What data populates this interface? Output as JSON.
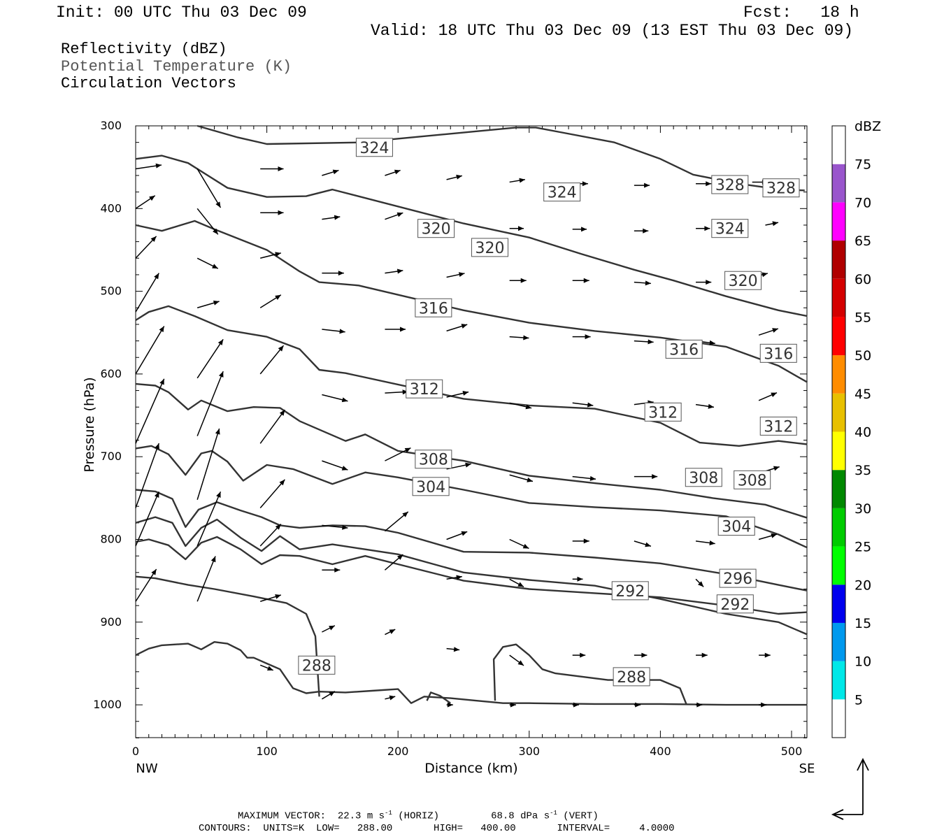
{
  "header": {
    "init": "Init: 00 UTC Thu 03 Dec 09",
    "fcst": "Fcst:   18 h",
    "valid": "Valid: 18 UTC Thu 03 Dec 09 (13 EST Thu 03 Dec 09)"
  },
  "legend": {
    "line1": "Reflectivity (dBZ)",
    "line2": "Potential Temperature (K)",
    "line3": "Circulation Vectors"
  },
  "footer": {
    "max_vector_prefix": "MAXIMUM VECTOR:  22.3 m s",
    "max_vector_horiz": " (HORIZ)",
    "max_vector_vert_prefix": "68.8 dPa s",
    "max_vector_vert": " (VERT)",
    "exponent": "-1",
    "contours": "CONTOURS:  UNITS=K  LOW=   288.00       HIGH=   400.00       INTERVAL=     4.0000"
  },
  "chart_data": {
    "type": "line",
    "title": "",
    "xlabel": "Distance (km)",
    "ylabel": "Pressure (hPa)",
    "xlim": [
      0,
      512
    ],
    "ylim": [
      1040,
      300
    ],
    "x_ticks": [
      0,
      100,
      200,
      300,
      400,
      500
    ],
    "y_ticks": [
      300,
      400,
      500,
      600,
      700,
      800,
      900,
      1000
    ],
    "x_end_labels": {
      "left": "NW",
      "right": "SE"
    },
    "colorbar": {
      "title": "dBZ",
      "labels": [
        "5",
        "10",
        "15",
        "20",
        "25",
        "30",
        "35",
        "40",
        "45",
        "50",
        "55",
        "60",
        "65",
        "70",
        "75"
      ],
      "colors": [
        "#ffffff",
        "#00e8e8",
        "#0099ee",
        "#0000ee",
        "#00ff00",
        "#00cc00",
        "#008800",
        "#ffff00",
        "#e8c000",
        "#ff8c00",
        "#ff0000",
        "#d40000",
        "#b00000",
        "#ff00ff",
        "#9955cc",
        "#ffffff"
      ]
    },
    "contour_labels": [
      {
        "text": "324",
        "x": 182,
        "p": 326
      },
      {
        "text": "324",
        "x": 325,
        "p": 380
      },
      {
        "text": "328",
        "x": 453,
        "p": 371
      },
      {
        "text": "328",
        "x": 492,
        "p": 375
      },
      {
        "text": "320",
        "x": 229,
        "p": 424
      },
      {
        "text": "320",
        "x": 270,
        "p": 447
      },
      {
        "text": "324",
        "x": 453,
        "p": 424
      },
      {
        "text": "320",
        "x": 463,
        "p": 487
      },
      {
        "text": "316",
        "x": 227,
        "p": 520
      },
      {
        "text": "316",
        "x": 418,
        "p": 570
      },
      {
        "text": "316",
        "x": 490,
        "p": 575
      },
      {
        "text": "312",
        "x": 220,
        "p": 618
      },
      {
        "text": "312",
        "x": 402,
        "p": 646
      },
      {
        "text": "312",
        "x": 490,
        "p": 663
      },
      {
        "text": "308",
        "x": 227,
        "p": 703
      },
      {
        "text": "308",
        "x": 433,
        "p": 725
      },
      {
        "text": "308",
        "x": 470,
        "p": 728
      },
      {
        "text": "304",
        "x": 225,
        "p": 736
      },
      {
        "text": "304",
        "x": 458,
        "p": 784
      },
      {
        "text": "296",
        "x": 459,
        "p": 847
      },
      {
        "text": "292",
        "x": 377,
        "p": 862
      },
      {
        "text": "292",
        "x": 457,
        "p": 878
      },
      {
        "text": "288",
        "x": 138,
        "p": 952
      },
      {
        "text": "288",
        "x": 378,
        "p": 966
      }
    ],
    "series": [
      {
        "x": [
          47,
          78,
          100,
          170,
          290,
          305,
          325,
          365,
          400,
          425,
          460,
          492,
          510
        ],
        "p": [
          300,
          314,
          322,
          320,
          302,
          302,
          308,
          320,
          340,
          359,
          370,
          377,
          378
        ]
      },
      {
        "x": [
          0,
          20,
          40,
          70,
          100,
          130,
          150,
          250,
          300,
          340,
          380,
          410,
          450,
          490,
          512
        ],
        "p": [
          340,
          336,
          345,
          375,
          386,
          385,
          377,
          418,
          435,
          455,
          474,
          487,
          506,
          523,
          530
        ]
      },
      {
        "x": [
          0,
          20,
          45,
          60,
          100,
          125,
          140,
          170,
          250,
          300,
          350,
          400,
          450,
          490,
          512
        ],
        "p": [
          420,
          427,
          415,
          425,
          450,
          476,
          489,
          493,
          523,
          538,
          548,
          556,
          567,
          590,
          610
        ]
      },
      {
        "x": [
          0,
          10,
          25,
          45,
          70,
          100,
          125,
          140,
          160,
          250,
          300,
          350,
          400,
          430,
          460,
          490,
          512
        ],
        "p": [
          535,
          525,
          518,
          530,
          547,
          555,
          570,
          595,
          599,
          630,
          638,
          642,
          659,
          683,
          687,
          681,
          685
        ]
      },
      {
        "x": [
          0,
          15,
          25,
          40,
          50,
          70,
          90,
          110,
          125,
          160,
          175,
          200,
          250,
          300,
          350,
          400,
          440,
          480,
          512
        ],
        "p": [
          612,
          614,
          622,
          643,
          632,
          645,
          640,
          641,
          657,
          681,
          673,
          693,
          705,
          723,
          732,
          740,
          750,
          758,
          774
        ]
      },
      {
        "x": [
          0,
          12,
          25,
          38,
          50,
          58,
          70,
          82,
          100,
          120,
          150,
          175,
          200,
          250,
          300,
          350,
          400,
          450,
          490,
          512
        ],
        "p": [
          690,
          687,
          697,
          722,
          696,
          693,
          706,
          729,
          710,
          715,
          733,
          719,
          725,
          740,
          756,
          761,
          765,
          772,
          794,
          810
        ]
      },
      {
        "x": [
          0,
          15,
          28,
          38,
          48,
          62,
          80,
          96,
          110,
          125,
          150,
          175,
          200,
          250,
          300,
          350,
          400,
          450,
          490,
          512
        ],
        "p": [
          740,
          742,
          751,
          785,
          764,
          755,
          765,
          773,
          783,
          786,
          783,
          784,
          792,
          815,
          816,
          822,
          829,
          842,
          855,
          862
        ]
      },
      {
        "x": [
          0,
          15,
          28,
          38,
          50,
          62,
          80,
          96,
          110,
          125,
          150,
          175,
          200,
          250,
          300,
          350,
          400,
          450,
          490,
          512
        ],
        "p": [
          780,
          773,
          780,
          808,
          786,
          776,
          798,
          814,
          796,
          812,
          806,
          812,
          818,
          840,
          849,
          856,
          872,
          890,
          900,
          915
        ]
      },
      {
        "x": [
          0,
          10,
          25,
          38,
          50,
          62,
          80,
          96,
          110,
          125,
          150,
          175,
          200,
          250,
          300,
          350,
          400,
          450,
          490,
          512
        ],
        "p": [
          803,
          800,
          807,
          824,
          804,
          797,
          812,
          830,
          819,
          820,
          830,
          820,
          830,
          850,
          860,
          865,
          870,
          880,
          890,
          888
        ]
      },
      {
        "x": [
          0,
          15,
          40,
          60,
          90,
          115,
          130,
          137,
          140
        ],
        "p": [
          845,
          847,
          855,
          860,
          869,
          877,
          890,
          917,
          990
        ]
      },
      {
        "x": [
          0,
          10,
          20,
          40,
          50,
          60,
          70,
          80,
          85,
          90,
          100,
          110,
          120,
          130,
          140,
          160,
          180,
          200,
          210,
          220,
          240,
          260,
          280,
          300,
          350,
          400,
          450,
          490,
          512
        ],
        "p": [
          940,
          932,
          928,
          926,
          933,
          924,
          926,
          934,
          943,
          943,
          950,
          957,
          980,
          986,
          984,
          985,
          983,
          981,
          998,
          990,
          992,
          995,
          998,
          998,
          999,
          999,
          1000,
          1000,
          1000
        ]
      },
      {
        "x": [
          274,
          273,
          280,
          290,
          300,
          310,
          320,
          360,
          400,
          415,
          420
        ],
        "p": [
          995,
          945,
          930,
          927,
          940,
          957,
          962,
          970,
          970,
          980,
          1000
        ]
      },
      {
        "x": [
          222,
          225,
          232,
          240
        ],
        "p": [
          995,
          985,
          989,
          998
        ]
      }
    ],
    "vectors": [
      {
        "x": 0,
        "p": 352,
        "u": 20,
        "v": -3
      },
      {
        "x": 47,
        "p": 352,
        "u": 18,
        "v": 30
      },
      {
        "x": 95,
        "p": 352,
        "u": 18,
        "v": 0
      },
      {
        "x": 142,
        "p": 360,
        "u": 13,
        "v": -4
      },
      {
        "x": 190,
        "p": 360,
        "u": 12,
        "v": -4
      },
      {
        "x": 237,
        "p": 365,
        "u": 12,
        "v": -3
      },
      {
        "x": 285,
        "p": 368,
        "u": 12,
        "v": -2
      },
      {
        "x": 333,
        "p": 370,
        "u": 12,
        "v": 0
      },
      {
        "x": 380,
        "p": 372,
        "u": 12,
        "v": 0
      },
      {
        "x": 427,
        "p": 370,
        "u": 12,
        "v": 0
      },
      {
        "x": 470,
        "p": 368,
        "u": 12,
        "v": 0
      },
      {
        "x": 0,
        "p": 400,
        "u": 15,
        "v": -10
      },
      {
        "x": 47,
        "p": 400,
        "u": 16,
        "v": 20
      },
      {
        "x": 95,
        "p": 405,
        "u": 18,
        "v": 0
      },
      {
        "x": 142,
        "p": 413,
        "u": 14,
        "v": -2
      },
      {
        "x": 190,
        "p": 413,
        "u": 14,
        "v": -5
      },
      {
        "x": 285,
        "p": 424,
        "u": 11,
        "v": 0
      },
      {
        "x": 333,
        "p": 425,
        "u": 11,
        "v": 0
      },
      {
        "x": 380,
        "p": 427,
        "u": 11,
        "v": 0
      },
      {
        "x": 427,
        "p": 424,
        "u": 11,
        "v": 0
      },
      {
        "x": 480,
        "p": 420,
        "u": 10,
        "v": -2
      },
      {
        "x": 0,
        "p": 460,
        "u": 16,
        "v": -17
      },
      {
        "x": 47,
        "p": 460,
        "u": 16,
        "v": 8
      },
      {
        "x": 95,
        "p": 460,
        "u": 16,
        "v": -4
      },
      {
        "x": 142,
        "p": 478,
        "u": 17,
        "v": 0
      },
      {
        "x": 190,
        "p": 478,
        "u": 14,
        "v": -2
      },
      {
        "x": 237,
        "p": 483,
        "u": 14,
        "v": -3
      },
      {
        "x": 285,
        "p": 487,
        "u": 13,
        "v": 0
      },
      {
        "x": 333,
        "p": 487,
        "u": 13,
        "v": 0
      },
      {
        "x": 380,
        "p": 489,
        "u": 13,
        "v": 1
      },
      {
        "x": 427,
        "p": 489,
        "u": 12,
        "v": 0
      },
      {
        "x": 470,
        "p": 483,
        "u": 12,
        "v": -3
      },
      {
        "x": 0,
        "p": 525,
        "u": 18,
        "v": -30
      },
      {
        "x": 47,
        "p": 520,
        "u": 17,
        "v": -5
      },
      {
        "x": 95,
        "p": 520,
        "u": 16,
        "v": -10
      },
      {
        "x": 142,
        "p": 546,
        "u": 18,
        "v": 2
      },
      {
        "x": 190,
        "p": 546,
        "u": 16,
        "v": 0
      },
      {
        "x": 237,
        "p": 548,
        "u": 16,
        "v": -5
      },
      {
        "x": 285,
        "p": 555,
        "u": 15,
        "v": 1
      },
      {
        "x": 333,
        "p": 555,
        "u": 14,
        "v": 0
      },
      {
        "x": 380,
        "p": 560,
        "u": 15,
        "v": 1
      },
      {
        "x": 427,
        "p": 560,
        "u": 15,
        "v": 2
      },
      {
        "x": 475,
        "p": 553,
        "u": 15,
        "v": -5
      },
      {
        "x": 0,
        "p": 600,
        "u": 22,
        "v": -37
      },
      {
        "x": 47,
        "p": 605,
        "u": 20,
        "v": -30
      },
      {
        "x": 95,
        "p": 600,
        "u": 18,
        "v": -22
      },
      {
        "x": 142,
        "p": 625,
        "u": 20,
        "v": 5
      },
      {
        "x": 190,
        "p": 623,
        "u": 18,
        "v": -1
      },
      {
        "x": 237,
        "p": 628,
        "u": 17,
        "v": -4
      },
      {
        "x": 285,
        "p": 635,
        "u": 17,
        "v": 4
      },
      {
        "x": 333,
        "p": 635,
        "u": 16,
        "v": 2
      },
      {
        "x": 380,
        "p": 637,
        "u": 15,
        "v": -2
      },
      {
        "x": 427,
        "p": 637,
        "u": 14,
        "v": 2
      },
      {
        "x": 475,
        "p": 632,
        "u": 14,
        "v": -6
      },
      {
        "x": 0,
        "p": 684,
        "u": 22,
        "v": -50
      },
      {
        "x": 47,
        "p": 675,
        "u": 20,
        "v": -50
      },
      {
        "x": 95,
        "p": 684,
        "u": 19,
        "v": -26
      },
      {
        "x": 142,
        "p": 705,
        "u": 20,
        "v": 7
      },
      {
        "x": 190,
        "p": 705,
        "u": 20,
        "v": -10
      },
      {
        "x": 237,
        "p": 715,
        "u": 19,
        "v": -4
      },
      {
        "x": 285,
        "p": 722,
        "u": 18,
        "v": 5
      },
      {
        "x": 333,
        "p": 724,
        "u": 18,
        "v": 2
      },
      {
        "x": 380,
        "p": 724,
        "u": 18,
        "v": 0
      },
      {
        "x": 427,
        "p": 724,
        "u": 17,
        "v": 2
      },
      {
        "x": 475,
        "p": 720,
        "u": 16,
        "v": -5
      },
      {
        "x": 0,
        "p": 762,
        "u": 18,
        "v": -50
      },
      {
        "x": 47,
        "p": 752,
        "u": 17,
        "v": -55
      },
      {
        "x": 95,
        "p": 762,
        "u": 19,
        "v": -22
      },
      {
        "x": 142,
        "p": 783,
        "u": 20,
        "v": 2
      },
      {
        "x": 190,
        "p": 790,
        "u": 18,
        "v": -15
      },
      {
        "x": 237,
        "p": 800,
        "u": 16,
        "v": -6
      },
      {
        "x": 285,
        "p": 800,
        "u": 15,
        "v": 7
      },
      {
        "x": 333,
        "p": 802,
        "u": 13,
        "v": 0
      },
      {
        "x": 380,
        "p": 802,
        "u": 13,
        "v": 4
      },
      {
        "x": 427,
        "p": 802,
        "u": 15,
        "v": 2
      },
      {
        "x": 475,
        "p": 800,
        "u": 14,
        "v": -4
      },
      {
        "x": 0,
        "p": 808,
        "u": 18,
        "v": -42
      },
      {
        "x": 47,
        "p": 808,
        "u": 18,
        "v": -42
      },
      {
        "x": 95,
        "p": 808,
        "u": 16,
        "v": -17
      },
      {
        "x": 142,
        "p": 837,
        "u": 14,
        "v": 0
      },
      {
        "x": 190,
        "p": 837,
        "u": 14,
        "v": -12
      },
      {
        "x": 237,
        "p": 848,
        "u": 12,
        "v": -2
      },
      {
        "x": 285,
        "p": 848,
        "u": 11,
        "v": 6
      },
      {
        "x": 333,
        "p": 848,
        "u": 8,
        "v": 0
      },
      {
        "x": 427,
        "p": 848,
        "u": 6,
        "v": 6
      }
    ],
    "vectors_low": [
      {
        "x": 0,
        "p": 875,
        "u": 16,
        "v": -25
      },
      {
        "x": 47,
        "p": 875,
        "u": 14,
        "v": -35
      },
      {
        "x": 95,
        "p": 875,
        "u": 16,
        "v": -5
      },
      {
        "x": 142,
        "p": 912,
        "u": 10,
        "v": -5
      },
      {
        "x": 190,
        "p": 915,
        "u": 8,
        "v": -4
      },
      {
        "x": 237,
        "p": 932,
        "u": 10,
        "v": 1
      },
      {
        "x": 285,
        "p": 940,
        "u": 11,
        "v": 8
      },
      {
        "x": 333,
        "p": 940,
        "u": 10,
        "v": 0
      },
      {
        "x": 380,
        "p": 940,
        "u": 10,
        "v": 0
      },
      {
        "x": 427,
        "p": 940,
        "u": 9,
        "v": 0
      },
      {
        "x": 475,
        "p": 940,
        "u": 9,
        "v": 0
      },
      {
        "x": 47,
        "p": 953,
        "u": 0,
        "v": 0
      },
      {
        "x": 95,
        "p": 952,
        "u": 10,
        "v": 4
      },
      {
        "x": 142,
        "p": 993,
        "u": 10,
        "v": -6
      },
      {
        "x": 190,
        "p": 993,
        "u": 8,
        "v": -2
      },
      {
        "x": 237,
        "p": 1000,
        "u": 5,
        "v": 0
      },
      {
        "x": 285,
        "p": 1000,
        "u": 5,
        "v": 0
      },
      {
        "x": 333,
        "p": 1000,
        "u": 5,
        "v": 0
      },
      {
        "x": 380,
        "p": 1000,
        "u": 5,
        "v": 0
      },
      {
        "x": 427,
        "p": 1000,
        "u": 5,
        "v": 0
      },
      {
        "x": 475,
        "p": 1000,
        "u": 6,
        "v": 0
      }
    ]
  }
}
